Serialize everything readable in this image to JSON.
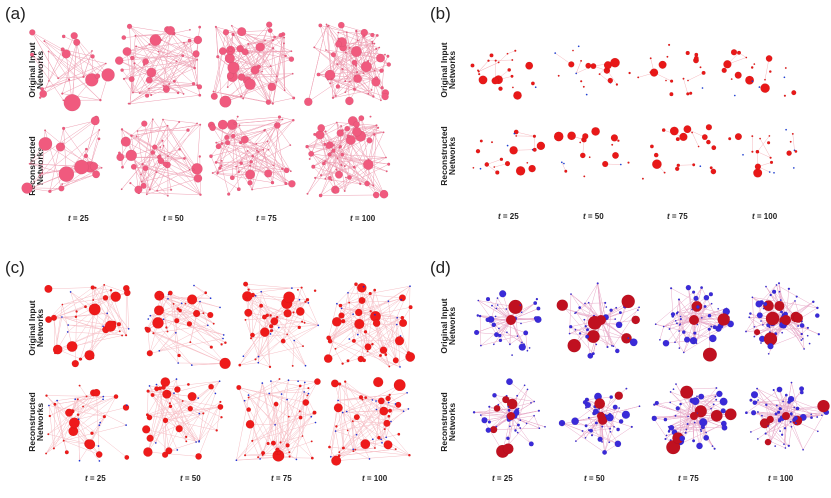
{
  "panels": [
    {
      "id": "a",
      "label": "(a)",
      "row_labels": [
        [
          "Original Input",
          "Networks"
        ],
        [
          "Reconstructed",
          "Networks"
        ]
      ],
      "t_var": "t",
      "time_labels": [
        "25",
        "50",
        "75",
        "100"
      ],
      "colors": {
        "node": "#f05a7e",
        "hub": "#ee1111",
        "edge": "#e8809a"
      }
    },
    {
      "id": "b",
      "label": "(b)",
      "row_labels": [
        [
          "Original Input",
          "Networks"
        ],
        [
          "Reconstructed",
          "Networks"
        ]
      ],
      "t_var": "t",
      "time_labels": [
        "25",
        "50",
        "75",
        "100"
      ],
      "colors": {
        "node": "#e81818",
        "hub": "#1a3ee0",
        "edge": "#f3a0a8"
      }
    },
    {
      "id": "c",
      "label": "(c)",
      "row_labels": [
        [
          "Original Input",
          "Networks"
        ],
        [
          "Reconstructed",
          "Networks"
        ]
      ],
      "t_var": "t",
      "time_labels": [
        "25",
        "50",
        "75",
        "100"
      ],
      "colors": {
        "node": "#ee1a1a",
        "hub": "#1a2fe0",
        "edge": "#f3aab3"
      }
    },
    {
      "id": "d",
      "label": "(d)",
      "row_labels": [
        [
          "Original Input",
          "Networks"
        ],
        [
          "Reconstructed",
          "Networks"
        ]
      ],
      "t_var": "t",
      "time_labels": [
        "25",
        "50",
        "75",
        "100"
      ],
      "colors": {
        "node": "#3a2ad8",
        "hub": "#c01020",
        "edge": "#e090b8"
      }
    }
  ]
}
